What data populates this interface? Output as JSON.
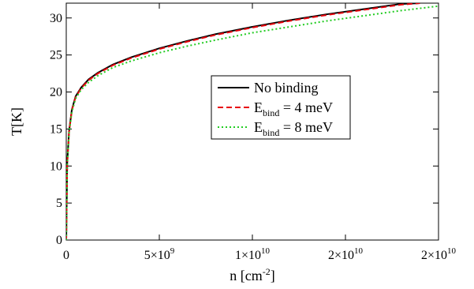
{
  "chart_data": {
    "type": "line",
    "xlabel": {
      "base": "n [cm",
      "sup": "-2",
      "end": "]"
    },
    "ylabel": "T[K]",
    "xlim": [
      0,
      20000000000
    ],
    "ylim": [
      0,
      32
    ],
    "x_ticks": [
      {
        "value": 0,
        "mant": "0",
        "exp": ""
      },
      {
        "value": 5000000000,
        "mant": "5×10",
        "exp": "9"
      },
      {
        "value": 10000000000,
        "mant": "1×10",
        "exp": "10"
      },
      {
        "value": 15000000000,
        "mant": "2×10",
        "exp": "10"
      },
      {
        "value": 20000000000,
        "mant": "2×10",
        "exp": "10"
      }
    ],
    "y_ticks": [
      0,
      5,
      10,
      15,
      20,
      25,
      30
    ],
    "grid": false,
    "legend_position": "center-right",
    "series": [
      {
        "name": "No binding",
        "label": {
          "base": "No binding",
          "sub": "",
          "rest": ""
        },
        "color": "#000000",
        "dash": "solid",
        "x": [
          0,
          50000000,
          150000000,
          300000000,
          500000000,
          800000000,
          1200000000,
          1700000000,
          2500000000,
          3500000000,
          5000000000,
          6500000000,
          8000000000,
          10000000000,
          12000000000,
          14000000000,
          16000000000,
          18000000000,
          19000000000
        ],
        "y": [
          0,
          10.3,
          14.7,
          17.6,
          19.4,
          20.6,
          21.7,
          22.6,
          23.7,
          24.7,
          25.9,
          26.9,
          27.8,
          28.8,
          29.7,
          30.5,
          31.2,
          31.9,
          32.0
        ]
      },
      {
        "name": "E_bind = 4 meV",
        "label": {
          "base": "E",
          "sub": "bind",
          "rest": " = 4 meV"
        },
        "color": "#e8000b",
        "dash": "dashed",
        "x": [
          0,
          50000000,
          150000000,
          300000000,
          500000000,
          800000000,
          1200000000,
          1700000000,
          2500000000,
          3500000000,
          5000000000,
          6500000000,
          8000000000,
          10000000000,
          12000000000,
          14000000000,
          16000000000,
          18000000000,
          19000000000
        ],
        "y": [
          0,
          10.2,
          14.6,
          17.5,
          19.3,
          20.5,
          21.6,
          22.5,
          23.6,
          24.6,
          25.8,
          26.8,
          27.7,
          28.7,
          29.6,
          30.4,
          31.1,
          31.8,
          32.0
        ]
      },
      {
        "name": "E_bind = 8 meV",
        "label": {
          "base": "E",
          "sub": "bind",
          "rest": " = 8 meV"
        },
        "color": "#22cc22",
        "dash": "dotted",
        "x": [
          0,
          50000000,
          150000000,
          300000000,
          500000000,
          800000000,
          1200000000,
          1700000000,
          2500000000,
          3500000000,
          5000000000,
          6500000000,
          8000000000,
          10000000000,
          12000000000,
          14000000000,
          16000000000,
          18000000000,
          20000000000
        ],
        "y": [
          0,
          10.0,
          14.4,
          17.3,
          19.1,
          20.3,
          21.3,
          22.2,
          23.3,
          24.2,
          25.3,
          26.2,
          27.0,
          28.0,
          28.8,
          29.6,
          30.3,
          31.0,
          31.6
        ]
      }
    ]
  }
}
